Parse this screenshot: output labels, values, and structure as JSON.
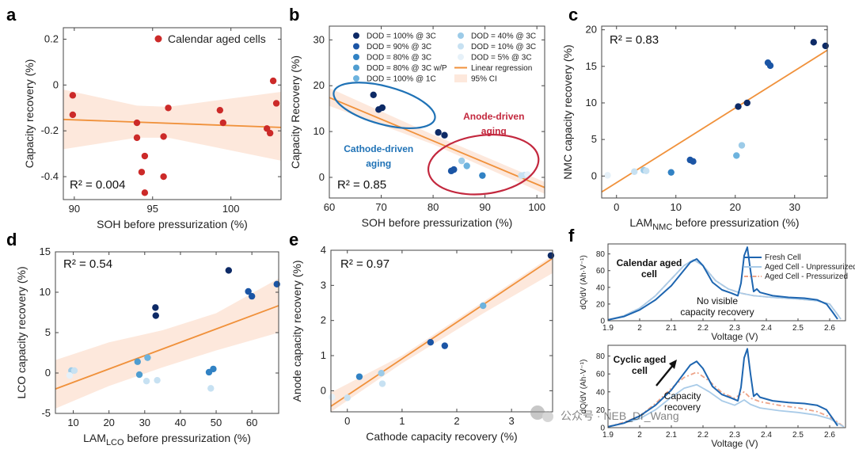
{
  "colors": {
    "ci": "#fde8dc",
    "fit": "#f0913b",
    "red": "#cc2a29",
    "d100": "#0d2a66",
    "d90": "#1b55a5",
    "d80": "#3182c4",
    "d80wp": "#4f9dd0",
    "d100_1c": "#6db3de",
    "d40": "#9ccbe8",
    "d10": "#c7e1f2",
    "d5": "#e6f1f9",
    "fresh": "#1d65b0",
    "unpress": "#a9cbe8",
    "press": "#eea489",
    "cath_ell": "#1f72b6",
    "anode_ell": "#c3283e"
  },
  "chart_data": [
    {
      "id": "a",
      "panel_label": "a",
      "type": "scatter",
      "xlabel": "SOH before pressurization (%)",
      "ylabel": "Capacity recovery (%)",
      "xlim": [
        89.3,
        103.2
      ],
      "ylim": [
        -0.5,
        0.25
      ],
      "xticks": [
        90,
        95,
        100
      ],
      "yticks": [
        -0.4,
        -0.2,
        0,
        0.2
      ],
      "ytick_labels": [
        "-0.4",
        "-0.2",
        "0",
        "0.2"
      ],
      "r2": "R² = 0.004",
      "legend": "Calendar aged cells",
      "fit": {
        "slope": -0.0025,
        "intercept": 0.073
      },
      "ci": {
        "x": [
          89.3,
          94,
          96,
          103.2
        ],
        "upper": [
          -0.02,
          -0.09,
          -0.095,
          -0.03
        ],
        "lower": [
          -0.28,
          -0.23,
          -0.23,
          -0.33
        ]
      },
      "points": [
        {
          "x": 89.9,
          "y": -0.045
        },
        {
          "x": 89.9,
          "y": -0.13
        },
        {
          "x": 94.0,
          "y": -0.165
        },
        {
          "x": 94.0,
          "y": -0.23
        },
        {
          "x": 94.3,
          "y": -0.38
        },
        {
          "x": 94.5,
          "y": -0.31
        },
        {
          "x": 94.5,
          "y": -0.47
        },
        {
          "x": 95.7,
          "y": -0.225
        },
        {
          "x": 95.7,
          "y": -0.4
        },
        {
          "x": 96.0,
          "y": -0.1
        },
        {
          "x": 99.3,
          "y": -0.11
        },
        {
          "x": 99.5,
          "y": -0.165
        },
        {
          "x": 102.3,
          "y": -0.19
        },
        {
          "x": 102.5,
          "y": -0.21
        },
        {
          "x": 102.7,
          "y": 0.018
        },
        {
          "x": 102.9,
          "y": -0.08
        }
      ]
    },
    {
      "id": "b",
      "panel_label": "b",
      "type": "scatter",
      "xlabel": "SOH before pressurization (%)",
      "ylabel": "Capacity Recovery (%)",
      "xlim": [
        60,
        101.5
      ],
      "ylim": [
        -4.5,
        33
      ],
      "xticks": [
        60,
        70,
        80,
        90,
        100
      ],
      "yticks": [
        0,
        10,
        20,
        30
      ],
      "r2": "R² = 0.85",
      "fit": {
        "slope": -0.473,
        "intercept": 45.8
      },
      "ci": {
        "x": [
          60,
          80,
          101.5
        ],
        "upper": [
          19.5,
          9.3,
          -1.0
        ],
        "lower": [
          15.6,
          7.2,
          -3.6
        ]
      },
      "legend_entries": [
        {
          "label": "DOD = 100% @ 3C",
          "color": "d100",
          "kind": "dot"
        },
        {
          "label": "DOD = 90% @ 3C",
          "color": "d90",
          "kind": "dot"
        },
        {
          "label": "DOD = 80% @ 3C",
          "color": "d80",
          "kind": "dot"
        },
        {
          "label": "DOD = 80% @ 3C w/P",
          "color": "d80wp",
          "kind": "dot"
        },
        {
          "label": "DOD = 100% @ 1C",
          "color": "d100_1c",
          "kind": "dot"
        },
        {
          "label": "DOD = 40% @ 3C",
          "color": "d40",
          "kind": "dot"
        },
        {
          "label": "DOD = 10% @ 3C",
          "color": "d10",
          "kind": "dot"
        },
        {
          "label": "DOD = 5% @ 3C",
          "color": "d5",
          "kind": "dot"
        },
        {
          "label": "Linear regression",
          "color": "fit",
          "kind": "line"
        },
        {
          "label": "95% CI",
          "color": "ci",
          "kind": "patch"
        }
      ],
      "annotations": [
        {
          "text": "Cathode-driven",
          "color": "cath_ell"
        },
        {
          "text": "aging",
          "color": "cath_ell"
        },
        {
          "text": "Anode-driven",
          "color": "anode_ell"
        },
        {
          "text": "aging",
          "color": "anode_ell"
        }
      ],
      "points": [
        {
          "x": 68.5,
          "y": 18.0,
          "c": "d100"
        },
        {
          "x": 69.5,
          "y": 14.8,
          "c": "d100"
        },
        {
          "x": 70.2,
          "y": 15.2,
          "c": "d100"
        },
        {
          "x": 81.0,
          "y": 9.8,
          "c": "d100"
        },
        {
          "x": 82.2,
          "y": 9.2,
          "c": "d100"
        },
        {
          "x": 83.5,
          "y": 1.4,
          "c": "d90"
        },
        {
          "x": 84.0,
          "y": 1.7,
          "c": "d90"
        },
        {
          "x": 89.5,
          "y": 0.4,
          "c": "d80"
        },
        {
          "x": 86.5,
          "y": 2.5,
          "c": "d100_1c"
        },
        {
          "x": 85.5,
          "y": 3.6,
          "c": "d40"
        },
        {
          "x": 97.0,
          "y": 0.4,
          "c": "d10"
        },
        {
          "x": 97.6,
          "y": 0.5,
          "c": "d10"
        },
        {
          "x": 98.2,
          "y": 0.6,
          "c": "d5"
        }
      ]
    },
    {
      "id": "c",
      "panel_label": "c",
      "type": "scatter",
      "xlabel": "LAM",
      "xlabel_sub": "NMC",
      "xlabel_tail": " before pressurization (%)",
      "ylabel": "NMC capacity recovery (%)",
      "xlim": [
        -2.5,
        35.5
      ],
      "ylim": [
        -3,
        20.5
      ],
      "xticks": [
        0,
        10,
        20,
        30
      ],
      "yticks": [
        0,
        5,
        10,
        15,
        20
      ],
      "r2": "R² = 0.83",
      "fit": {
        "slope": 0.51,
        "intercept": -0.9
      },
      "points": [
        {
          "x": 33.2,
          "y": 18.3,
          "c": "d100"
        },
        {
          "x": 35.2,
          "y": 17.8,
          "c": "d100"
        },
        {
          "x": 20.5,
          "y": 9.5,
          "c": "d100"
        },
        {
          "x": 22.0,
          "y": 10.0,
          "c": "d100"
        },
        {
          "x": 25.5,
          "y": 15.5,
          "c": "d90"
        },
        {
          "x": 25.9,
          "y": 15.1,
          "c": "d90"
        },
        {
          "x": 12.4,
          "y": 2.2,
          "c": "d90"
        },
        {
          "x": 12.9,
          "y": 2.0,
          "c": "d90"
        },
        {
          "x": 9.2,
          "y": 0.5,
          "c": "d80"
        },
        {
          "x": 20.2,
          "y": 2.8,
          "c": "d100_1c"
        },
        {
          "x": 21.1,
          "y": 4.2,
          "c": "d40"
        },
        {
          "x": 4.6,
          "y": 0.8,
          "c": "d40"
        },
        {
          "x": 3.0,
          "y": 0.6,
          "c": "d10"
        },
        {
          "x": 5.0,
          "y": 0.7,
          "c": "d10"
        },
        {
          "x": -1.5,
          "y": 0.1,
          "c": "d5"
        }
      ]
    },
    {
      "id": "d",
      "panel_label": "d",
      "type": "scatter",
      "xlabel": "LAM",
      "xlabel_sub": "LCO",
      "xlabel_tail": " before pressurization (%)",
      "ylabel": "LCO capacity recovery (%)",
      "xlim": [
        5,
        67.5
      ],
      "ylim": [
        -5,
        15
      ],
      "xticks": [
        10,
        20,
        30,
        40,
        50,
        60
      ],
      "yticks": [
        -5,
        0,
        5,
        10,
        15
      ],
      "r2": "R² = 0.54",
      "fit": {
        "slope": 0.165,
        "intercept": -2.8
      },
      "ci": {
        "x": [
          5,
          20,
          35,
          50,
          67.5
        ],
        "upper": [
          1.6,
          3.8,
          5.3,
          7.4,
          11.7
        ],
        "lower": [
          -4.4,
          -1.6,
          0.7,
          2.8,
          5.0
        ]
      },
      "points": [
        {
          "x": 53.5,
          "y": 12.7,
          "c": "d100"
        },
        {
          "x": 33.0,
          "y": 8.1,
          "c": "d100"
        },
        {
          "x": 33.1,
          "y": 7.1,
          "c": "d100"
        },
        {
          "x": 59.0,
          "y": 10.1,
          "c": "d90"
        },
        {
          "x": 60.0,
          "y": 9.5,
          "c": "d90"
        },
        {
          "x": 67.0,
          "y": 11.0,
          "c": "d90"
        },
        {
          "x": 48.0,
          "y": 0.1,
          "c": "d80"
        },
        {
          "x": 49.2,
          "y": 0.5,
          "c": "d80"
        },
        {
          "x": 28.0,
          "y": 1.4,
          "c": "d80wp"
        },
        {
          "x": 28.5,
          "y": -0.2,
          "c": "d80wp"
        },
        {
          "x": 30.8,
          "y": 1.9,
          "c": "d100_1c"
        },
        {
          "x": 30.5,
          "y": -1.0,
          "c": "d10"
        },
        {
          "x": 33.5,
          "y": -0.9,
          "c": "d10"
        },
        {
          "x": 48.5,
          "y": -1.9,
          "c": "d10"
        },
        {
          "x": 9.5,
          "y": 0.3,
          "c": "d40"
        },
        {
          "x": 10.3,
          "y": 0.3,
          "c": "d10"
        },
        {
          "x": 9.0,
          "y": -0.3,
          "c": "d5"
        }
      ]
    },
    {
      "id": "e",
      "panel_label": "e",
      "type": "scatter",
      "xlabel": "Cathode capacity recovery (%)",
      "ylabel": "Anode capacity recovery (%)",
      "xlim": [
        -0.3,
        3.75
      ],
      "ylim": [
        -0.6,
        4.0
      ],
      "xticks": [
        0,
        1,
        2,
        3
      ],
      "yticks": [
        0,
        1,
        2,
        3,
        4
      ],
      "r2": "R² = 0.97",
      "fit": {
        "slope": 1.04,
        "intercept": -0.13
      },
      "ci": {
        "x": [
          -0.3,
          1.0,
          2.5,
          3.75
        ],
        "upper": [
          -0.05,
          1.0,
          2.55,
          3.85
        ],
        "lower": [
          -0.6,
          0.78,
          2.22,
          3.35
        ]
      },
      "points": [
        {
          "x": 3.72,
          "y": 3.85,
          "c": "d100"
        },
        {
          "x": 1.52,
          "y": 1.38,
          "c": "d90"
        },
        {
          "x": 1.78,
          "y": 1.28,
          "c": "d90"
        },
        {
          "x": 0.22,
          "y": 0.4,
          "c": "d80"
        },
        {
          "x": 2.48,
          "y": 2.42,
          "c": "d100_1c"
        },
        {
          "x": 0.62,
          "y": 0.5,
          "c": "d40"
        },
        {
          "x": 0.64,
          "y": 0.2,
          "c": "d10"
        },
        {
          "x": 0.0,
          "y": -0.2,
          "c": "d10"
        },
        {
          "x": -0.28,
          "y": -0.18,
          "c": "d5"
        }
      ]
    },
    {
      "id": "f",
      "panel_label": "f",
      "type": "line",
      "xlabel": "Voltage (V)",
      "ylabel": "dQ/dV (Ah·V⁻¹)",
      "xlim": [
        1.9,
        2.65
      ],
      "ylim": [
        0,
        92
      ],
      "xticks": [
        1.9,
        2.0,
        2.1,
        2.2,
        2.3,
        2.4,
        2.5,
        2.6
      ],
      "xtick_labels": [
        "1.9",
        "2",
        "2.1",
        "2.2",
        "2.3",
        "2.4",
        "2.5",
        "2.6"
      ],
      "yticks": [
        0,
        20,
        40,
        60,
        80
      ],
      "legend_entries": [
        {
          "label": "Fresh Cell",
          "color": "fresh",
          "style": "solid"
        },
        {
          "label": "Aged Cell - Unpressurized",
          "color": "unpress",
          "style": "solid"
        },
        {
          "label": "Aged Cell - Pressurized",
          "color": "press",
          "style": "dashdot"
        }
      ],
      "top": {
        "title_lines": [
          "Calendar aged",
          "cell"
        ],
        "note_lines": [
          "No visible",
          "capacity recovery"
        ],
        "series": [
          {
            "name": "Fresh Cell",
            "color": "fresh",
            "style": "solid",
            "x": [
              1.9,
              1.95,
              2.0,
              2.05,
              2.1,
              2.13,
              2.16,
              2.18,
              2.2,
              2.23,
              2.26,
              2.29,
              2.31,
              2.32,
              2.33,
              2.34,
              2.35,
              2.36,
              2.37,
              2.38,
              2.42,
              2.47,
              2.52,
              2.56,
              2.59,
              2.61,
              2.625
            ],
            "y": [
              1,
              5,
              13,
              25,
              42,
              56,
              70,
              74,
              66,
              46,
              37,
              33,
              30,
              45,
              78,
              88,
              60,
              35,
              38,
              34,
              30,
              28,
              27,
              25,
              20,
              10,
              2
            ]
          },
          {
            "name": "Aged Cell - Unpressurized",
            "color": "unpress",
            "style": "solid",
            "x": [
              1.9,
              1.95,
              2.0,
              2.05,
              2.1,
              2.14,
              2.17,
              2.2,
              2.24,
              2.28,
              2.32,
              2.36,
              2.42,
              2.5,
              2.56,
              2.6,
              2.62,
              2.635
            ],
            "y": [
              1,
              6,
              15,
              30,
              50,
              66,
              73,
              66,
              48,
              38,
              33,
              30,
              28,
              26,
              24,
              20,
              10,
              2
            ]
          },
          {
            "name": "Aged Cell - Pressurized",
            "color": "press",
            "style": "dashdot",
            "x": [
              1.9,
              1.95,
              2.0,
              2.05,
              2.1,
              2.14,
              2.17,
              2.2,
              2.24,
              2.28,
              2.32,
              2.36,
              2.42,
              2.5,
              2.56,
              2.6,
              2.62,
              2.635
            ],
            "y": [
              1,
              6,
              15,
              30,
              50,
              66,
              73,
              66,
              48,
              38,
              33,
              30,
              28,
              26,
              24,
              20,
              10,
              2
            ]
          }
        ]
      },
      "bottom": {
        "title_lines": [
          "Cyclic aged",
          "cell"
        ],
        "note_lines": [
          "Capacity",
          "recovery"
        ],
        "series": [
          {
            "name": "Fresh Cell",
            "color": "fresh",
            "style": "solid",
            "x": [
              1.9,
              1.95,
              2.0,
              2.05,
              2.1,
              2.13,
              2.16,
              2.18,
              2.2,
              2.23,
              2.26,
              2.29,
              2.31,
              2.32,
              2.33,
              2.34,
              2.35,
              2.36,
              2.37,
              2.38,
              2.42,
              2.47,
              2.52,
              2.56,
              2.59,
              2.61,
              2.625
            ],
            "y": [
              1,
              5,
              13,
              25,
              42,
              56,
              70,
              74,
              66,
              46,
              37,
              33,
              30,
              45,
              78,
              88,
              60,
              35,
              38,
              34,
              30,
              28,
              27,
              25,
              20,
              10,
              2
            ]
          },
          {
            "name": "Aged Cell - Unpressurized",
            "color": "unpress",
            "style": "solid",
            "x": [
              1.9,
              1.95,
              2.0,
              2.05,
              2.1,
              2.14,
              2.18,
              2.22,
              2.26,
              2.3,
              2.33,
              2.35,
              2.38,
              2.44,
              2.5,
              2.56,
              2.6,
              2.63,
              2.645
            ],
            "y": [
              1,
              5,
              10,
              20,
              34,
              44,
              48,
              40,
              30,
              25,
              31,
              26,
              22,
              19,
              17,
              14,
              10,
              4,
              1
            ]
          },
          {
            "name": "Aged Cell - Pressurized",
            "color": "press",
            "style": "dashdot",
            "x": [
              1.9,
              1.95,
              2.0,
              2.05,
              2.1,
              2.14,
              2.18,
              2.22,
              2.26,
              2.3,
              2.33,
              2.35,
              2.38,
              2.44,
              2.5,
              2.56,
              2.6,
              2.63,
              2.645
            ],
            "y": [
              1,
              6,
              13,
              27,
              44,
              56,
              62,
              52,
              39,
              33,
              40,
              33,
              29,
              25,
              22,
              18,
              12,
              5,
              1
            ]
          }
        ]
      }
    }
  ],
  "watermark": "公众号 · NEB_Dr_Wang"
}
